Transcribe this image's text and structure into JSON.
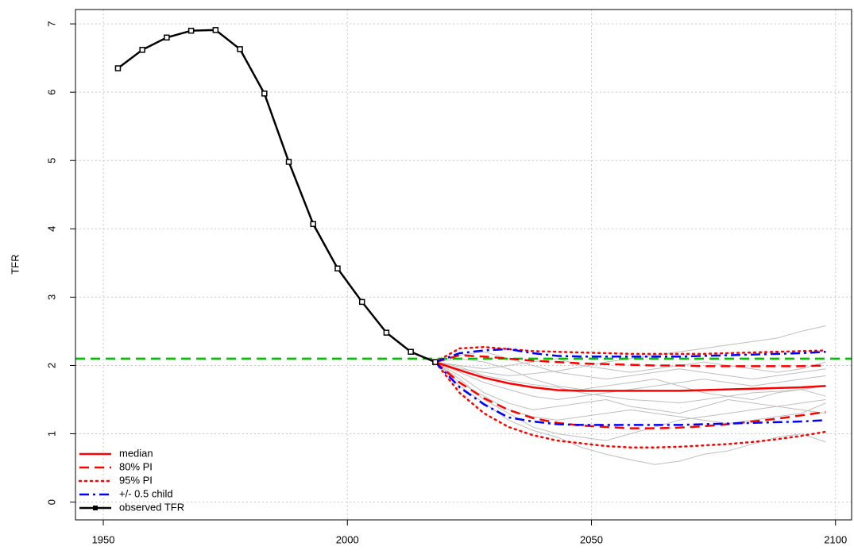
{
  "chart_data": {
    "type": "line",
    "y_label": "TFR",
    "xlim": [
      1944.3,
      2103.3
    ],
    "ylim": [
      -0.26,
      7.21
    ],
    "xticks": [
      1950,
      2000,
      2050,
      2100
    ],
    "yticks": [
      0,
      1,
      2,
      3,
      4,
      5,
      6,
      7
    ],
    "grid": true,
    "legend": "bottomleft",
    "x": [
      2018,
      2023,
      2028,
      2033,
      2038,
      2043,
      2048,
      2053,
      2058,
      2063,
      2068,
      2073,
      2078,
      2083,
      2088,
      2093,
      2098
    ],
    "trajectories": {
      "color": "#bebebe",
      "values": [
        [
          2.05,
          1.95,
          1.9,
          1.85,
          1.88,
          1.92,
          1.98,
          2.05,
          2.1,
          2.15,
          2.2,
          2.25,
          2.3,
          2.35,
          2.4,
          2.5,
          2.58
        ],
        [
          2.05,
          1.7,
          1.45,
          1.2,
          1.05,
          0.95,
          0.8,
          0.7,
          0.62,
          0.55,
          0.6,
          0.7,
          0.75,
          0.85,
          0.95,
          1.0,
          0.88
        ],
        [
          2.05,
          2.1,
          2.05,
          1.95,
          1.8,
          1.7,
          1.65,
          1.7,
          1.75,
          1.8,
          1.7,
          1.6,
          1.55,
          1.5,
          1.6,
          1.65,
          1.55
        ],
        [
          2.05,
          1.85,
          1.6,
          1.45,
          1.35,
          1.4,
          1.45,
          1.5,
          1.4,
          1.35,
          1.3,
          1.4,
          1.5,
          1.45,
          1.4,
          1.35,
          1.3
        ],
        [
          2.05,
          2.0,
          1.95,
          2.0,
          2.05,
          2.1,
          2.0,
          1.95,
          1.9,
          1.95,
          2.0,
          2.05,
          2.0,
          1.95,
          1.9,
          1.95,
          2.05
        ],
        [
          2.05,
          1.8,
          1.5,
          1.3,
          1.1,
          1.0,
          0.95,
          0.9,
          1.0,
          1.1,
          1.2,
          1.25,
          1.3,
          1.35,
          1.4,
          1.45,
          1.5
        ],
        [
          2.05,
          1.9,
          1.75,
          1.65,
          1.55,
          1.5,
          1.55,
          1.6,
          1.65,
          1.7,
          1.75,
          1.8,
          1.75,
          1.7,
          1.75,
          1.8,
          1.85
        ],
        [
          2.05,
          2.15,
          2.2,
          2.1,
          2.0,
          1.9,
          1.85,
          1.8,
          1.85,
          1.9,
          1.95,
          1.9,
          1.85,
          1.8,
          1.85,
          1.9,
          1.95
        ],
        [
          2.05,
          1.75,
          1.55,
          1.35,
          1.25,
          1.2,
          1.25,
          1.3,
          1.35,
          1.3,
          1.25,
          1.2,
          1.15,
          1.2,
          1.25,
          1.3,
          1.45
        ],
        [
          2.05,
          1.98,
          1.85,
          1.78,
          1.72,
          1.68,
          1.6,
          1.55,
          1.5,
          1.48,
          1.45,
          1.5,
          1.55,
          1.6,
          1.62,
          1.65,
          1.7
        ]
      ]
    },
    "hlines": [
      {
        "value": 2.1,
        "color": "#00c000",
        "dash": "dashed"
      }
    ],
    "series": [
      {
        "name": "median",
        "color": "#ff0000",
        "dash": "solid",
        "values": [
          2.05,
          1.93,
          1.82,
          1.74,
          1.68,
          1.64,
          1.63,
          1.63,
          1.63,
          1.63,
          1.63,
          1.64,
          1.65,
          1.66,
          1.67,
          1.68,
          1.7
        ]
      },
      {
        "name": "80% PI",
        "color": "#ff0000",
        "dash": "dashed",
        "values": [
          2.05,
          2.15,
          2.13,
          2.1,
          2.07,
          2.05,
          2.03,
          2.02,
          2.01,
          2.0,
          2.0,
          1.99,
          1.99,
          1.99,
          1.99,
          1.99,
          2.0
        ],
        "lower": [
          2.05,
          1.75,
          1.52,
          1.35,
          1.23,
          1.16,
          1.12,
          1.1,
          1.08,
          1.08,
          1.09,
          1.11,
          1.14,
          1.18,
          1.22,
          1.27,
          1.32
        ]
      },
      {
        "name": "95% PI",
        "color": "#ff0000",
        "dash": "dotted",
        "values": [
          2.05,
          2.25,
          2.27,
          2.24,
          2.21,
          2.2,
          2.19,
          2.18,
          2.17,
          2.17,
          2.17,
          2.17,
          2.18,
          2.19,
          2.2,
          2.21,
          2.22
        ],
        "lower": [
          2.05,
          1.6,
          1.3,
          1.1,
          0.98,
          0.9,
          0.86,
          0.82,
          0.8,
          0.8,
          0.81,
          0.83,
          0.85,
          0.88,
          0.92,
          0.97,
          1.03
        ]
      },
      {
        "name": "+/- 0.5 child",
        "color": "#0000ff",
        "dash": "dotdash",
        "values": [
          2.05,
          2.18,
          2.22,
          2.24,
          2.18,
          2.14,
          2.13,
          2.13,
          2.13,
          2.13,
          2.13,
          2.14,
          2.15,
          2.16,
          2.17,
          2.18,
          2.2
        ],
        "lower": [
          2.05,
          1.68,
          1.43,
          1.24,
          1.18,
          1.14,
          1.13,
          1.13,
          1.13,
          1.13,
          1.13,
          1.14,
          1.15,
          1.16,
          1.17,
          1.18,
          1.2
        ]
      },
      {
        "name": "observed TFR",
        "color": "#000000",
        "dash": "solid",
        "markers": true,
        "x": [
          1953,
          1958,
          1963,
          1968,
          1973,
          1978,
          1983,
          1988,
          1993,
          1998,
          2003,
          2008,
          2013,
          2018
        ],
        "values": [
          6.35,
          6.62,
          6.8,
          6.9,
          6.91,
          6.63,
          5.98,
          4.98,
          4.07,
          3.42,
          2.93,
          2.48,
          2.2,
          2.05
        ]
      }
    ]
  }
}
